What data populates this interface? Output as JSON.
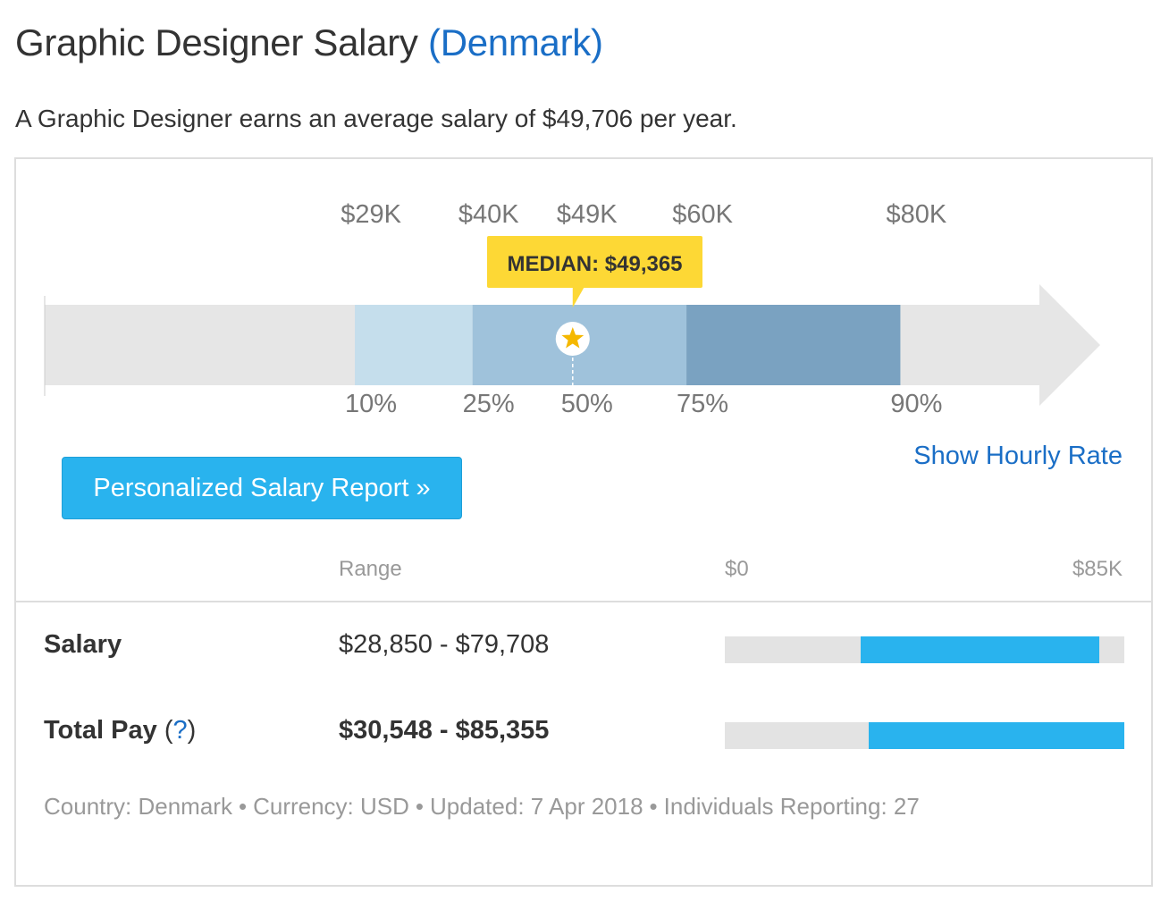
{
  "header": {
    "title": "Graphic Designer Salary",
    "country": "(Denmark)"
  },
  "summary": "A Graphic Designer earns an average salary of $49,706 per year.",
  "chart_data": {
    "type": "bar",
    "orientation": "horizontal-percentile-range",
    "currency": "USD",
    "percentiles": [
      {
        "percentile_label": "10%",
        "value_label": "$29K",
        "value": 29000
      },
      {
        "percentile_label": "25%",
        "value_label": "$40K",
        "value": 40000
      },
      {
        "percentile_label": "50%",
        "value_label": "$49K",
        "value": 49365
      },
      {
        "percentile_label": "75%",
        "value_label": "$60K",
        "value": 60000
      },
      {
        "percentile_label": "90%",
        "value_label": "$80K",
        "value": 80000
      }
    ],
    "median": {
      "label": "MEDIAN: $49,365",
      "value": 49365
    },
    "xlim": [
      0,
      93000
    ],
    "colors": {
      "track": "#e6e6e6",
      "band_10_25": "#c5deec",
      "band_25_75": "#9fc2db",
      "band_75_90": "#7aa2c1",
      "median_callout": "#fdd835",
      "star": "#f5b800",
      "tick_label": "#777777"
    }
  },
  "actions": {
    "hourly_link": "Show Hourly Rate",
    "report_button": "Personalized Salary Report »"
  },
  "table": {
    "range_header": "Range",
    "scale_min_label": "$0",
    "scale_max_label": "$85K",
    "scale_max": 85000,
    "rows": [
      {
        "label": "Salary",
        "help": "",
        "range": "$28,850 - $79,708",
        "bold": false,
        "low": 28850,
        "high": 79708
      },
      {
        "label": "Total Pay",
        "help": "?",
        "range": "$30,548 - $85,355",
        "bold": true,
        "low": 30548,
        "high": 85355
      }
    ]
  },
  "footer": {
    "country": "Country: Denmark",
    "currency": "Currency: USD",
    "updated": "Updated: 7 Apr 2018",
    "individuals": "Individuals Reporting: 27",
    "separator": "•"
  },
  "colors": {
    "link": "#1a6ec6",
    "button": "#29b3ee",
    "mini_bar": "#29b3ee",
    "mini_track": "#e3e3e3"
  }
}
